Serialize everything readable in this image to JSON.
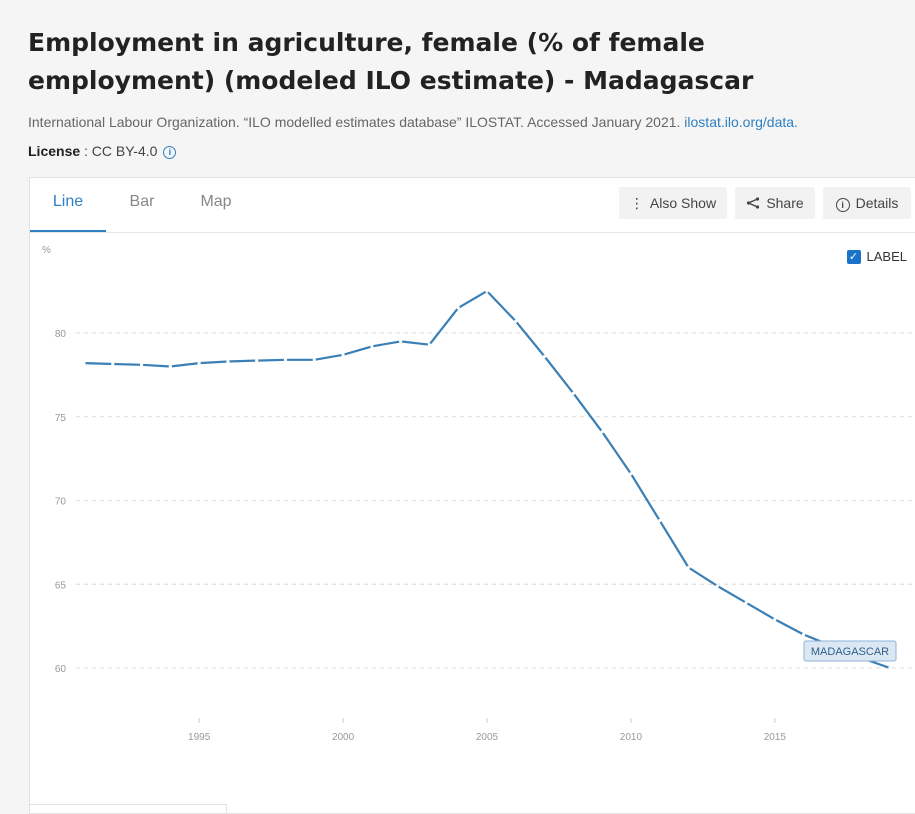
{
  "header": {
    "title": "Employment in agriculture, female (% of female employment) (modeled ILO estimate) - Madagascar",
    "source_text": "International Labour Organization. “ILO modelled estimates database” ILOSTAT. Accessed January 2021. ",
    "source_link": "ilostat.ilo.org/data.",
    "license_label": "License",
    "license_value": " : CC BY-4.0",
    "info_icon": "info-icon"
  },
  "tabs": [
    {
      "label": "Line",
      "active": true
    },
    {
      "label": "Bar",
      "active": false
    },
    {
      "label": "Map",
      "active": false
    }
  ],
  "toolbar": {
    "also_show": "Also Show",
    "share": "Share",
    "details": "Details"
  },
  "label_toggle": {
    "label": "LABEL",
    "checked": true
  },
  "colors": {
    "line": "#3a7fb5",
    "accent": "#2f7fc1"
  },
  "chart_data": {
    "type": "line",
    "title": "",
    "xlabel": "",
    "ylabel": "%",
    "xlim": [
      1991,
      2019
    ],
    "ylim": [
      56,
      85
    ],
    "yticks": [
      60,
      65,
      70,
      75,
      80
    ],
    "xticks": [
      1995,
      2000,
      2005,
      2010,
      2015
    ],
    "grid": true,
    "series": [
      {
        "name": "MADAGASCAR",
        "x": [
          1991,
          1992,
          1993,
          1994,
          1995,
          1996,
          1997,
          1998,
          1999,
          2000,
          2001,
          2002,
          2003,
          2004,
          2005,
          2006,
          2007,
          2008,
          2009,
          2010,
          2011,
          2012,
          2013,
          2014,
          2015,
          2016,
          2017,
          2018,
          2019
        ],
        "values": [
          78.2,
          78.15,
          78.1,
          78.0,
          78.2,
          78.3,
          78.35,
          78.4,
          78.4,
          78.7,
          79.2,
          79.5,
          79.3,
          81.5,
          82.5,
          80.7,
          78.6,
          76.4,
          74.1,
          71.6,
          68.8,
          66.0,
          64.9,
          63.9,
          62.9,
          62.0,
          61.3,
          60.6,
          60.0
        ]
      }
    ]
  }
}
